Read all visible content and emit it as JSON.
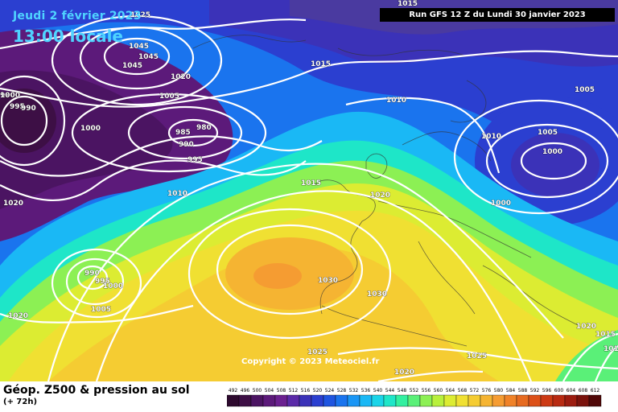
{
  "header": {
    "date": "Jeudi 2 février 2023",
    "time": "13:00 locale",
    "run": "Run GFS 12 Z du Lundi 30 janvier 2023"
  },
  "copyright": "Copyright © 2023 Meteociel.fr",
  "footer": {
    "title": "Géop. Z500 & pression au sol",
    "subtitle": "(+ 72h)"
  },
  "legend": {
    "labels": [
      "492",
      "496",
      "500",
      "504",
      "508",
      "512",
      "516",
      "520",
      "524",
      "528",
      "532",
      "536",
      "540",
      "544",
      "548",
      "552",
      "556",
      "560",
      "564",
      "568",
      "572",
      "576",
      "580",
      "584",
      "588",
      "592",
      "596",
      "600",
      "604",
      "608",
      "612"
    ],
    "colors": [
      "#2d0a2e",
      "#3d0f45",
      "#4b1462",
      "#5c1a7a",
      "#6b2090",
      "#5b2aa8",
      "#3b32b8",
      "#2b3fd0",
      "#1f55e0",
      "#1a74ee",
      "#1a96f5",
      "#1ab8f5",
      "#1ad4e8",
      "#1ee6c8",
      "#32f0a0",
      "#5af078",
      "#8cf054",
      "#b8f03c",
      "#dcec32",
      "#f0e032",
      "#f5cc32",
      "#f5b432",
      "#f59c32",
      "#f08228",
      "#e66a20",
      "#dc5018",
      "#cc3a14",
      "#b82a12",
      "#9c1c10",
      "#7a120c",
      "#500808"
    ]
  },
  "isobar_labels": [
    {
      "text": "1025",
      "key": "l1"
    },
    {
      "text": "1045",
      "key": "l2"
    },
    {
      "text": "1045",
      "key": "l3"
    },
    {
      "text": "1045",
      "key": "l4"
    },
    {
      "text": "1020",
      "key": "l5"
    },
    {
      "text": "1015",
      "key": "l6"
    },
    {
      "text": "1005",
      "key": "l7"
    },
    {
      "text": "1000",
      "key": "l8"
    },
    {
      "text": "990",
      "key": "l9"
    },
    {
      "text": "995",
      "key": "l10"
    },
    {
      "text": "990",
      "key": "l11"
    },
    {
      "text": "1000",
      "key": "l12"
    },
    {
      "text": "985",
      "key": "l13"
    },
    {
      "text": "980",
      "key": "l14"
    },
    {
      "text": "990",
      "key": "l15"
    },
    {
      "text": "995",
      "key": "l16"
    },
    {
      "text": "1010",
      "key": "l17"
    },
    {
      "text": "1015",
      "key": "l18"
    },
    {
      "text": "1010",
      "key": "l19"
    },
    {
      "text": "1015",
      "key": "l20"
    },
    {
      "text": "1020",
      "key": "l21"
    },
    {
      "text": "1005",
      "key": "l22"
    },
    {
      "text": "1010",
      "key": "l23"
    },
    {
      "text": "1005",
      "key": "l24"
    },
    {
      "text": "1000",
      "key": "l25"
    },
    {
      "text": "1000",
      "key": "l26"
    },
    {
      "text": "1020",
      "key": "l27"
    },
    {
      "text": "990",
      "key": "l28"
    },
    {
      "text": "995",
      "key": "l29"
    },
    {
      "text": "1000",
      "key": "l30"
    },
    {
      "text": "1005",
      "key": "l31"
    },
    {
      "text": "1020",
      "key": "l32"
    },
    {
      "text": "1030",
      "key": "l33"
    },
    {
      "text": "1030",
      "key": "l34"
    },
    {
      "text": "1025",
      "key": "l35"
    },
    {
      "text": "1020",
      "key": "l36"
    },
    {
      "text": "1025",
      "key": "l37"
    },
    {
      "text": "1020",
      "key": "l38"
    },
    {
      "text": "1015",
      "key": "l39"
    },
    {
      "text": "1015",
      "key": "l40"
    }
  ]
}
